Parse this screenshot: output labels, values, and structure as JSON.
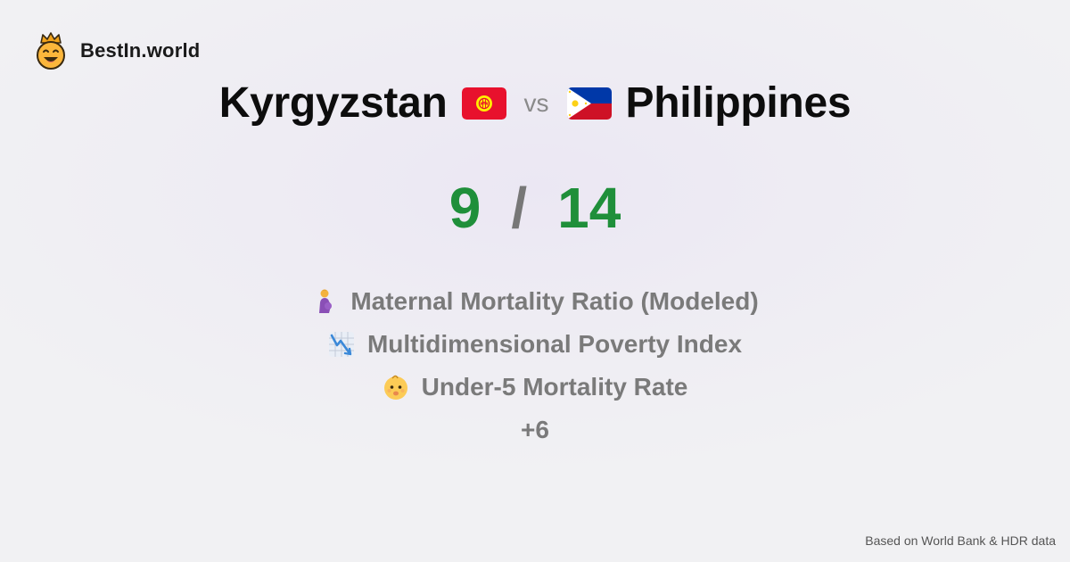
{
  "brand": {
    "name": "BestIn.world",
    "icon": "crown-smiley-icon"
  },
  "comparison": {
    "left_country": "Kyrgyzstan",
    "left_flag": "kyrgyzstan-flag-icon",
    "vs_label": "vs",
    "right_country": "Philippines",
    "right_flag": "philippines-flag-icon"
  },
  "score": {
    "left": "9",
    "separator": "/",
    "right": "14",
    "color": "#1f8f3a"
  },
  "metrics": [
    {
      "icon": "pregnant-woman-icon",
      "label": "Maternal Mortality Ratio (Modeled)"
    },
    {
      "icon": "chart-decreasing-icon",
      "label": "Multidimensional Poverty Index"
    },
    {
      "icon": "baby-icon",
      "label": "Under-5 Mortality Rate"
    }
  ],
  "more_label": "+6",
  "footer": {
    "source_text": "Based on World Bank & HDR data"
  }
}
